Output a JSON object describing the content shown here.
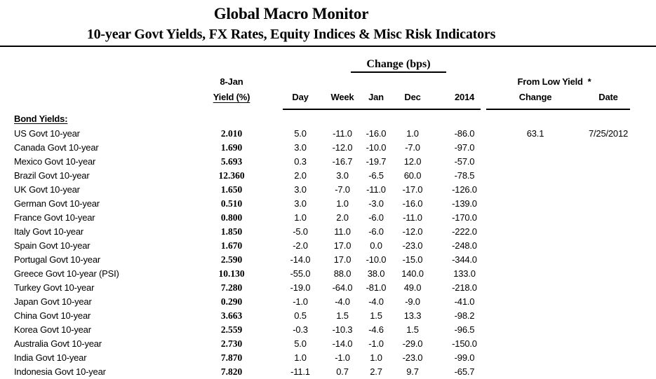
{
  "header": {
    "title": "Global Macro Monitor",
    "subtitle": "10-year Govt Yields, FX Rates, Equity Indices & Misc Risk Indicators"
  },
  "table": {
    "group_header": "Change (bps)",
    "yield_header_line1": "8-Jan",
    "yield_header_line2": "Yield (%)",
    "from_low_header": "From Low Yield  *",
    "columns": {
      "day": "Day",
      "week": "Week",
      "jan": "Jan",
      "dec": "Dec",
      "y2014": "2014",
      "change": "Change",
      "date": "Date"
    },
    "section_label": "Bond Yields:",
    "rows": [
      {
        "name": "US Govt 10-year",
        "yield": "2.010",
        "day": "5.0",
        "week": "-11.0",
        "jan": "-16.0",
        "dec": "1.0",
        "y2014": "-86.0",
        "change": "63.1",
        "date": "7/25/2012"
      },
      {
        "name": "Canada Govt 10-year",
        "yield": "1.690",
        "day": "3.0",
        "week": "-12.0",
        "jan": "-10.0",
        "dec": "-7.0",
        "y2014": "-97.0",
        "change": "",
        "date": ""
      },
      {
        "name": "Mexico Govt 10-year",
        "yield": "5.693",
        "day": "0.3",
        "week": "-16.7",
        "jan": "-19.7",
        "dec": "12.0",
        "y2014": "-57.0",
        "change": "",
        "date": ""
      },
      {
        "name": "Brazil Govt 10-year",
        "yield": "12.360",
        "day": "2.0",
        "week": "3.0",
        "jan": "-6.5",
        "dec": "60.0",
        "y2014": "-78.5",
        "change": "",
        "date": ""
      },
      {
        "name": "UK Govt 10-year",
        "yield": "1.650",
        "day": "3.0",
        "week": "-7.0",
        "jan": "-11.0",
        "dec": "-17.0",
        "y2014": "-126.0",
        "change": "",
        "date": ""
      },
      {
        "name": "German Govt 10-year",
        "yield": "0.510",
        "day": "3.0",
        "week": "1.0",
        "jan": "-3.0",
        "dec": "-16.0",
        "y2014": "-139.0",
        "change": "",
        "date": ""
      },
      {
        "name": "France Govt 10-year",
        "yield": "0.800",
        "day": "1.0",
        "week": "2.0",
        "jan": "-6.0",
        "dec": "-11.0",
        "y2014": "-170.0",
        "change": "",
        "date": ""
      },
      {
        "name": "Italy Govt 10-year",
        "yield": "1.850",
        "day": "-5.0",
        "week": "11.0",
        "jan": "-6.0",
        "dec": "-12.0",
        "y2014": "-222.0",
        "change": "",
        "date": ""
      },
      {
        "name": "Spain Govt 10-year",
        "yield": "1.670",
        "day": "-2.0",
        "week": "17.0",
        "jan": "0.0",
        "dec": "-23.0",
        "y2014": "-248.0",
        "change": "",
        "date": ""
      },
      {
        "name": "Portugal Govt 10-year",
        "yield": "2.590",
        "day": "-14.0",
        "week": "17.0",
        "jan": "-10.0",
        "dec": "-15.0",
        "y2014": "-344.0",
        "change": "",
        "date": ""
      },
      {
        "name": "Greece Govt 10-year (PSI)",
        "yield": "10.130",
        "day": "-55.0",
        "week": "88.0",
        "jan": "38.0",
        "dec": "140.0",
        "y2014": "133.0",
        "change": "",
        "date": ""
      },
      {
        "name": "Turkey Govt 10-year",
        "yield": "7.280",
        "day": "-19.0",
        "week": "-64.0",
        "jan": "-81.0",
        "dec": "49.0",
        "y2014": "-218.0",
        "change": "",
        "date": ""
      },
      {
        "name": "Japan Govt 10-year",
        "yield": "0.290",
        "day": "-1.0",
        "week": "-4.0",
        "jan": "-4.0",
        "dec": "-9.0",
        "y2014": "-41.0",
        "change": "",
        "date": ""
      },
      {
        "name": "China Govt 10-year",
        "yield": "3.663",
        "day": "0.5",
        "week": "1.5",
        "jan": "1.5",
        "dec": "13.3",
        "y2014": "-98.2",
        "change": "",
        "date": ""
      },
      {
        "name": "Korea Govt 10-year",
        "yield": "2.559",
        "day": "-0.3",
        "week": "-10.3",
        "jan": "-4.6",
        "dec": "1.5",
        "y2014": "-96.5",
        "change": "",
        "date": ""
      },
      {
        "name": "Australia Govt 10-year",
        "yield": "2.730",
        "day": "5.0",
        "week": "-14.0",
        "jan": "-1.0",
        "dec": "-29.0",
        "y2014": "-150.0",
        "change": "",
        "date": ""
      },
      {
        "name": "India Govt 10-year",
        "yield": "7.870",
        "day": "1.0",
        "week": "-1.0",
        "jan": "1.0",
        "dec": "-23.0",
        "y2014": "-99.0",
        "change": "",
        "date": ""
      },
      {
        "name": "Indonesia Govt 10-year",
        "yield": "7.820",
        "day": "-11.1",
        "week": "0.7",
        "jan": "2.7",
        "dec": "9.7",
        "y2014": "-65.7",
        "change": "",
        "date": ""
      }
    ]
  }
}
